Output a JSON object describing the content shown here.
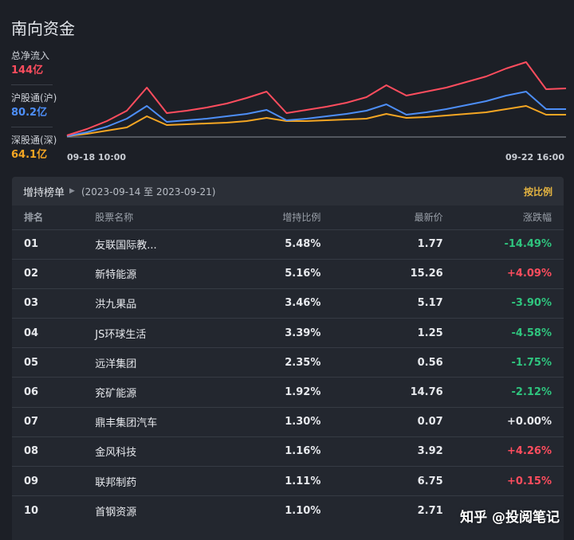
{
  "title": "南向资金",
  "legend": [
    {
      "label": "总净流入",
      "value": "144亿",
      "color": "#ff4d5e"
    },
    {
      "label": "沪股通(沪)",
      "value": "80.2亿",
      "color": "#4d8ef7"
    },
    {
      "label": "深股通(深)",
      "value": "64.1亿",
      "color": "#f5a623"
    }
  ],
  "chart_data": {
    "type": "line",
    "x_start_label": "09-18 10:00",
    "x_end_label": "09-22 16:00",
    "series": [
      {
        "name": "总净流入",
        "color": "#ff4d5e",
        "values": [
          2,
          10,
          20,
          33,
          62,
          30,
          33,
          37,
          42,
          49,
          57,
          30,
          34,
          38,
          43,
          50,
          65,
          52,
          57,
          62,
          69,
          76,
          86,
          94,
          60,
          61
        ]
      },
      {
        "name": "沪股通(沪)",
        "color": "#4d8ef7",
        "values": [
          1,
          6,
          13,
          23,
          39,
          19,
          21,
          23,
          26,
          29,
          34,
          21,
          23,
          26,
          29,
          33,
          41,
          28,
          31,
          35,
          40,
          45,
          52,
          57,
          35,
          35
        ]
      },
      {
        "name": "深股通(深)",
        "color": "#f5a623",
        "values": [
          1,
          4,
          8,
          12,
          26,
          15,
          16,
          17,
          18,
          20,
          24,
          20,
          20,
          21,
          22,
          23,
          29,
          24,
          25,
          27,
          29,
          31,
          35,
          39,
          28,
          28
        ]
      }
    ]
  },
  "panel": {
    "title": "增持榜单",
    "range": "(2023-09-14 至 2023-09-21)",
    "sort_label": "按比例",
    "headers": {
      "rank": "排名",
      "name": "股票名称",
      "ratio": "增持比例",
      "price": "最新价",
      "change": "涨跌幅"
    }
  },
  "rows": [
    {
      "rank": "01",
      "name": "友联国际教...",
      "ratio": "5.48%",
      "price": "1.77",
      "change": "-14.49%",
      "dir": "down"
    },
    {
      "rank": "02",
      "name": "新特能源",
      "ratio": "5.16%",
      "price": "15.26",
      "change": "+4.09%",
      "dir": "up"
    },
    {
      "rank": "03",
      "name": "洪九果品",
      "ratio": "3.46%",
      "price": "5.17",
      "change": "-3.90%",
      "dir": "down"
    },
    {
      "rank": "04",
      "name": "JS环球生活",
      "ratio": "3.39%",
      "price": "1.25",
      "change": "-4.58%",
      "dir": "down"
    },
    {
      "rank": "05",
      "name": "远洋集团",
      "ratio": "2.35%",
      "price": "0.56",
      "change": "-1.75%",
      "dir": "down"
    },
    {
      "rank": "06",
      "name": "兖矿能源",
      "ratio": "1.92%",
      "price": "14.76",
      "change": "-2.12%",
      "dir": "down"
    },
    {
      "rank": "07",
      "name": "鼎丰集团汽车",
      "ratio": "1.30%",
      "price": "0.07",
      "change": "+0.00%",
      "dir": "flat"
    },
    {
      "rank": "08",
      "name": "金风科技",
      "ratio": "1.16%",
      "price": "3.92",
      "change": "+4.26%",
      "dir": "up"
    },
    {
      "rank": "09",
      "name": "联邦制药",
      "ratio": "1.11%",
      "price": "6.75",
      "change": "+0.15%",
      "dir": "up"
    },
    {
      "rank": "10",
      "name": "首钢资源",
      "ratio": "1.10%",
      "price": "2.71",
      "change": "",
      "dir": "flat"
    }
  ],
  "watermark": "知乎 @投阅笔记"
}
